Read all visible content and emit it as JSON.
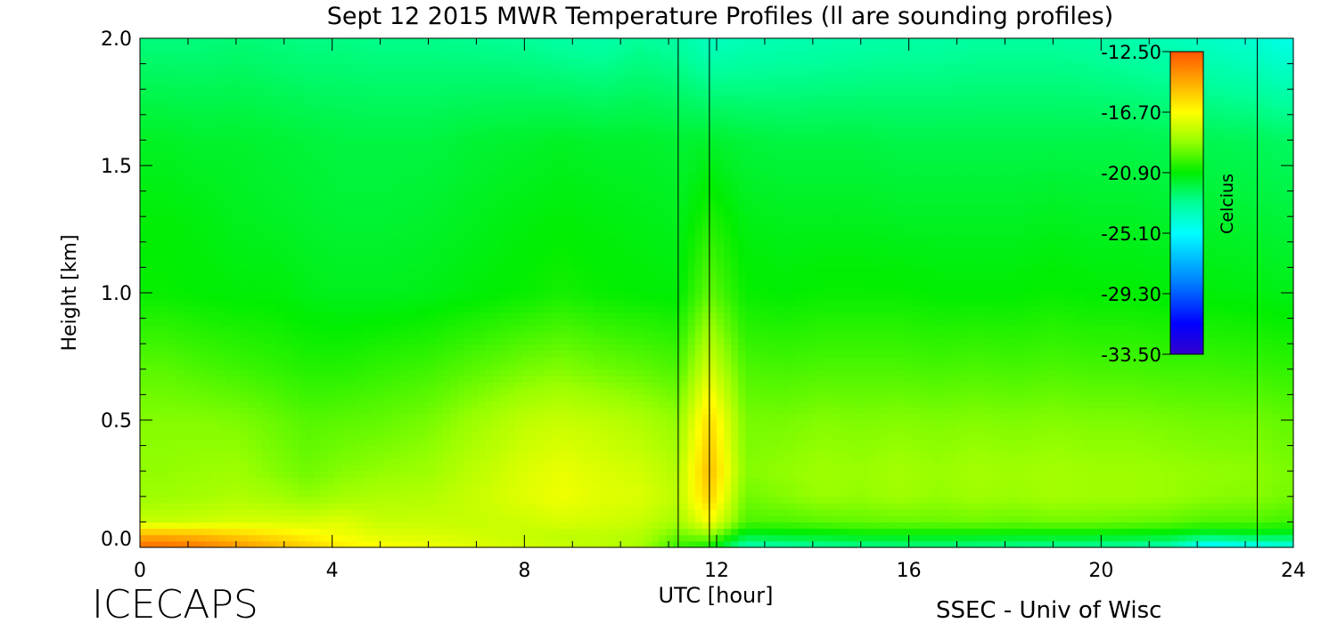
{
  "chart_data": {
    "type": "heatmap",
    "title": "Sept 12 2015 MWR Temperature Profiles (ll are sounding profiles)",
    "xlabel": "UTC [hour]",
    "ylabel": "Height [km]",
    "xlim": [
      0,
      24
    ],
    "ylim": [
      0,
      2.0
    ],
    "x_ticks": [
      0,
      4,
      8,
      12,
      16,
      20,
      24
    ],
    "x_tick_labels": [
      "0",
      "4",
      "8",
      "12",
      "16",
      "20",
      "24"
    ],
    "y_ticks": [
      0.0,
      0.5,
      1.0,
      1.5,
      2.0
    ],
    "y_tick_labels": [
      "0.0",
      "0.5",
      "1.0",
      "1.5",
      "2.0"
    ],
    "sounding_lines_hour": [
      11.2,
      11.85,
      23.25
    ],
    "colorbar": {
      "label": "Celcius",
      "range": [
        -33.5,
        -12.5
      ],
      "tick_labels": [
        "-12.50",
        "-16.70",
        "-20.90",
        "-25.10",
        "-29.30",
        "-33.50"
      ],
      "colormap": [
        {
          "v": -33.5,
          "color": "#3300cc"
        },
        {
          "v": -31.4,
          "color": "#0000ff"
        },
        {
          "v": -28.5,
          "color": "#0080ff"
        },
        {
          "v": -25.1,
          "color": "#00ffff"
        },
        {
          "v": -23.0,
          "color": "#00ff99"
        },
        {
          "v": -20.9,
          "color": "#00ee00"
        },
        {
          "v": -18.7,
          "color": "#99ff00"
        },
        {
          "v": -16.7,
          "color": "#ffff00"
        },
        {
          "v": -14.6,
          "color": "#ffaa00"
        },
        {
          "v": -12.5,
          "color": "#ff5500"
        }
      ]
    },
    "grid_hours": [
      0,
      0.5,
      1.2,
      2,
      2.8,
      3.5,
      4.2,
      5,
      6,
      7,
      8,
      8.8,
      9.6,
      10.4,
      11.2,
      11.85,
      12.6,
      13.4,
      14.2,
      15,
      15.8,
      16.6,
      17.4,
      18.2,
      19,
      19.8,
      20.6,
      21.4,
      22.2,
      23.25,
      23.8
    ],
    "grid_heights_km": [
      0,
      0.05,
      0.1,
      0.2,
      0.3,
      0.5,
      0.7,
      1.0,
      1.3,
      1.6,
      2.0
    ],
    "temperature_c": [
      [
        -13.0,
        -14.8,
        -17.8,
        -18.6,
        -18.8,
        -19.0,
        -19.6,
        -20.8,
        -21.0,
        -21.4,
        -22.6
      ],
      [
        -13.0,
        -14.8,
        -17.8,
        -18.6,
        -18.8,
        -19.0,
        -19.6,
        -20.8,
        -21.0,
        -21.4,
        -22.6
      ],
      [
        -13.3,
        -15.0,
        -17.7,
        -18.5,
        -18.7,
        -19.0,
        -19.8,
        -20.9,
        -21.1,
        -21.5,
        -22.6
      ],
      [
        -14.0,
        -15.5,
        -17.5,
        -18.3,
        -18.6,
        -19.1,
        -20.0,
        -21.0,
        -21.3,
        -21.5,
        -22.5
      ],
      [
        -14.8,
        -16.0,
        -17.5,
        -18.5,
        -19.0,
        -19.4,
        -20.2,
        -21.0,
        -21.4,
        -21.6,
        -22.6
      ],
      [
        -15.5,
        -16.5,
        -17.5,
        -18.8,
        -19.3,
        -19.7,
        -20.4,
        -21.2,
        -21.5,
        -21.7,
        -22.7
      ],
      [
        -16.2,
        -17.0,
        -17.3,
        -18.5,
        -19.0,
        -19.6,
        -20.4,
        -21.3,
        -21.6,
        -21.8,
        -22.7
      ],
      [
        -16.7,
        -17.3,
        -17.8,
        -18.3,
        -18.8,
        -19.5,
        -20.2,
        -21.3,
        -21.6,
        -21.8,
        -22.8
      ],
      [
        -17.0,
        -17.4,
        -17.8,
        -18.2,
        -18.6,
        -19.2,
        -20.0,
        -21.2,
        -21.5,
        -21.8,
        -22.8
      ],
      [
        -17.3,
        -17.6,
        -17.8,
        -17.8,
        -18.0,
        -18.6,
        -19.6,
        -21.0,
        -21.3,
        -21.6,
        -22.9
      ],
      [
        -17.6,
        -17.8,
        -17.7,
        -17.3,
        -17.4,
        -18.0,
        -19.2,
        -20.8,
        -21.1,
        -21.5,
        -23.0
      ],
      [
        -17.8,
        -18.0,
        -17.5,
        -17.0,
        -17.1,
        -17.8,
        -19.0,
        -20.6,
        -21.0,
        -21.4,
        -23.2
      ],
      [
        -18.0,
        -18.0,
        -17.6,
        -17.3,
        -17.4,
        -18.0,
        -19.3,
        -20.8,
        -21.1,
        -21.5,
        -23.3
      ],
      [
        -18.4,
        -18.2,
        -17.8,
        -17.4,
        -17.6,
        -18.3,
        -19.5,
        -20.9,
        -21.2,
        -21.5,
        -23.0
      ],
      [
        -20.2,
        -19.4,
        -18.5,
        -18.0,
        -18.2,
        -18.8,
        -19.8,
        -21.0,
        -21.3,
        -21.6,
        -23.2
      ],
      [
        -20.8,
        -18.8,
        -16.8,
        -15.5,
        -15.0,
        -15.8,
        -17.5,
        -19.5,
        -20.5,
        -21.5,
        -23.8
      ],
      [
        -23.6,
        -21.5,
        -19.8,
        -19.3,
        -19.0,
        -19.2,
        -19.8,
        -20.8,
        -21.2,
        -21.7,
        -23.6
      ],
      [
        -23.4,
        -21.3,
        -19.8,
        -19.0,
        -18.8,
        -19.2,
        -19.9,
        -20.9,
        -21.3,
        -21.8,
        -23.5
      ],
      [
        -23.2,
        -21.2,
        -19.6,
        -18.7,
        -18.6,
        -19.0,
        -19.8,
        -20.8,
        -21.3,
        -21.8,
        -23.4
      ],
      [
        -23.0,
        -21.0,
        -19.5,
        -18.8,
        -18.7,
        -19.1,
        -19.8,
        -20.8,
        -21.3,
        -21.8,
        -23.3
      ],
      [
        -22.8,
        -21.0,
        -19.4,
        -18.6,
        -18.5,
        -19.0,
        -19.8,
        -20.8,
        -21.4,
        -21.9,
        -23.2
      ],
      [
        -22.8,
        -21.0,
        -19.4,
        -18.8,
        -18.7,
        -19.1,
        -19.9,
        -20.9,
        -21.4,
        -21.9,
        -23.2
      ],
      [
        -22.9,
        -21.0,
        -19.3,
        -18.6,
        -18.5,
        -19.0,
        -19.8,
        -20.9,
        -21.4,
        -21.9,
        -23.1
      ],
      [
        -23.0,
        -21.1,
        -19.4,
        -18.7,
        -18.6,
        -19.1,
        -19.9,
        -20.9,
        -21.4,
        -21.9,
        -23.1
      ],
      [
        -23.1,
        -21.1,
        -19.3,
        -18.5,
        -18.5,
        -19.0,
        -19.8,
        -20.8,
        -21.3,
        -21.9,
        -23.1
      ],
      [
        -23.2,
        -21.1,
        -19.3,
        -18.6,
        -18.6,
        -19.1,
        -19.9,
        -20.9,
        -21.4,
        -21.9,
        -23.2
      ],
      [
        -23.3,
        -21.2,
        -19.4,
        -18.6,
        -18.6,
        -19.1,
        -19.9,
        -20.9,
        -21.4,
        -21.9,
        -23.4
      ],
      [
        -23.6,
        -21.3,
        -19.5,
        -18.7,
        -18.7,
        -19.2,
        -20.0,
        -21.0,
        -21.5,
        -22.0,
        -23.6
      ],
      [
        -25.8,
        -21.8,
        -19.8,
        -18.9,
        -18.8,
        -19.3,
        -20.0,
        -21.0,
        -21.5,
        -22.0,
        -23.9
      ],
      [
        -25.2,
        -21.5,
        -19.8,
        -19.0,
        -18.9,
        -19.3,
        -20.1,
        -21.1,
        -21.6,
        -22.1,
        -24.2
      ],
      [
        -24.8,
        -21.6,
        -20.0,
        -19.2,
        -19.1,
        -19.5,
        -20.2,
        -21.2,
        -21.7,
        -22.2,
        -24.6
      ]
    ]
  },
  "footer": {
    "left_label": "ICECAPS",
    "right_label": "SSEC - Univ of Wisc"
  }
}
